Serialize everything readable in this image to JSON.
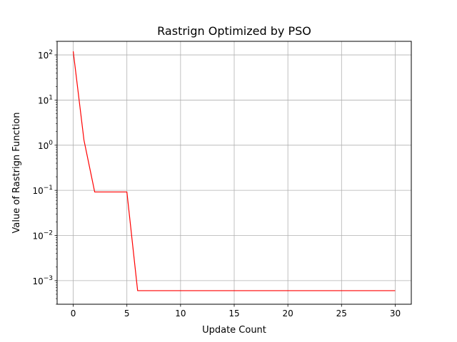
{
  "chart_data": {
    "type": "line",
    "title": "Rastrign Optimized by PSO",
    "xlabel": "Update Count",
    "ylabel": "Value of Rastrign Function",
    "yscale": "log",
    "grid": true,
    "xlim": [
      -1.5,
      31.5
    ],
    "ylim": [
      0.0003,
      200
    ],
    "xticks": [
      0,
      5,
      10,
      15,
      20,
      25,
      30
    ],
    "xtick_labels": [
      "0",
      "5",
      "10",
      "15",
      "20",
      "25",
      "30"
    ],
    "yticks": [
      0.001,
      0.01,
      0.1,
      1,
      10,
      100
    ],
    "ytick_labels": [
      {
        "base": "10",
        "exp": "−3"
      },
      {
        "base": "10",
        "exp": "−2"
      },
      {
        "base": "10",
        "exp": "−1"
      },
      {
        "base": "10",
        "exp": "0"
      },
      {
        "base": "10",
        "exp": "1"
      },
      {
        "base": "10",
        "exp": "2"
      }
    ],
    "series": [
      {
        "color": "#ff0000",
        "x": [
          0,
          1,
          2,
          3,
          4,
          5,
          6,
          7,
          8,
          9,
          10,
          11,
          12,
          13,
          14,
          15,
          16,
          17,
          18,
          19,
          20,
          21,
          22,
          23,
          24,
          25,
          26,
          27,
          28,
          29,
          30
        ],
        "y": [
          120,
          1.3,
          0.092,
          0.092,
          0.092,
          0.092,
          0.0006,
          0.0006,
          0.0006,
          0.0006,
          0.0006,
          0.0006,
          0.0006,
          0.0006,
          0.0006,
          0.0006,
          0.0006,
          0.0006,
          0.0006,
          0.0006,
          0.0006,
          0.0006,
          0.0006,
          0.0006,
          0.0006,
          0.0006,
          0.0006,
          0.0006,
          0.0006,
          0.0006,
          0.0006
        ]
      }
    ]
  }
}
